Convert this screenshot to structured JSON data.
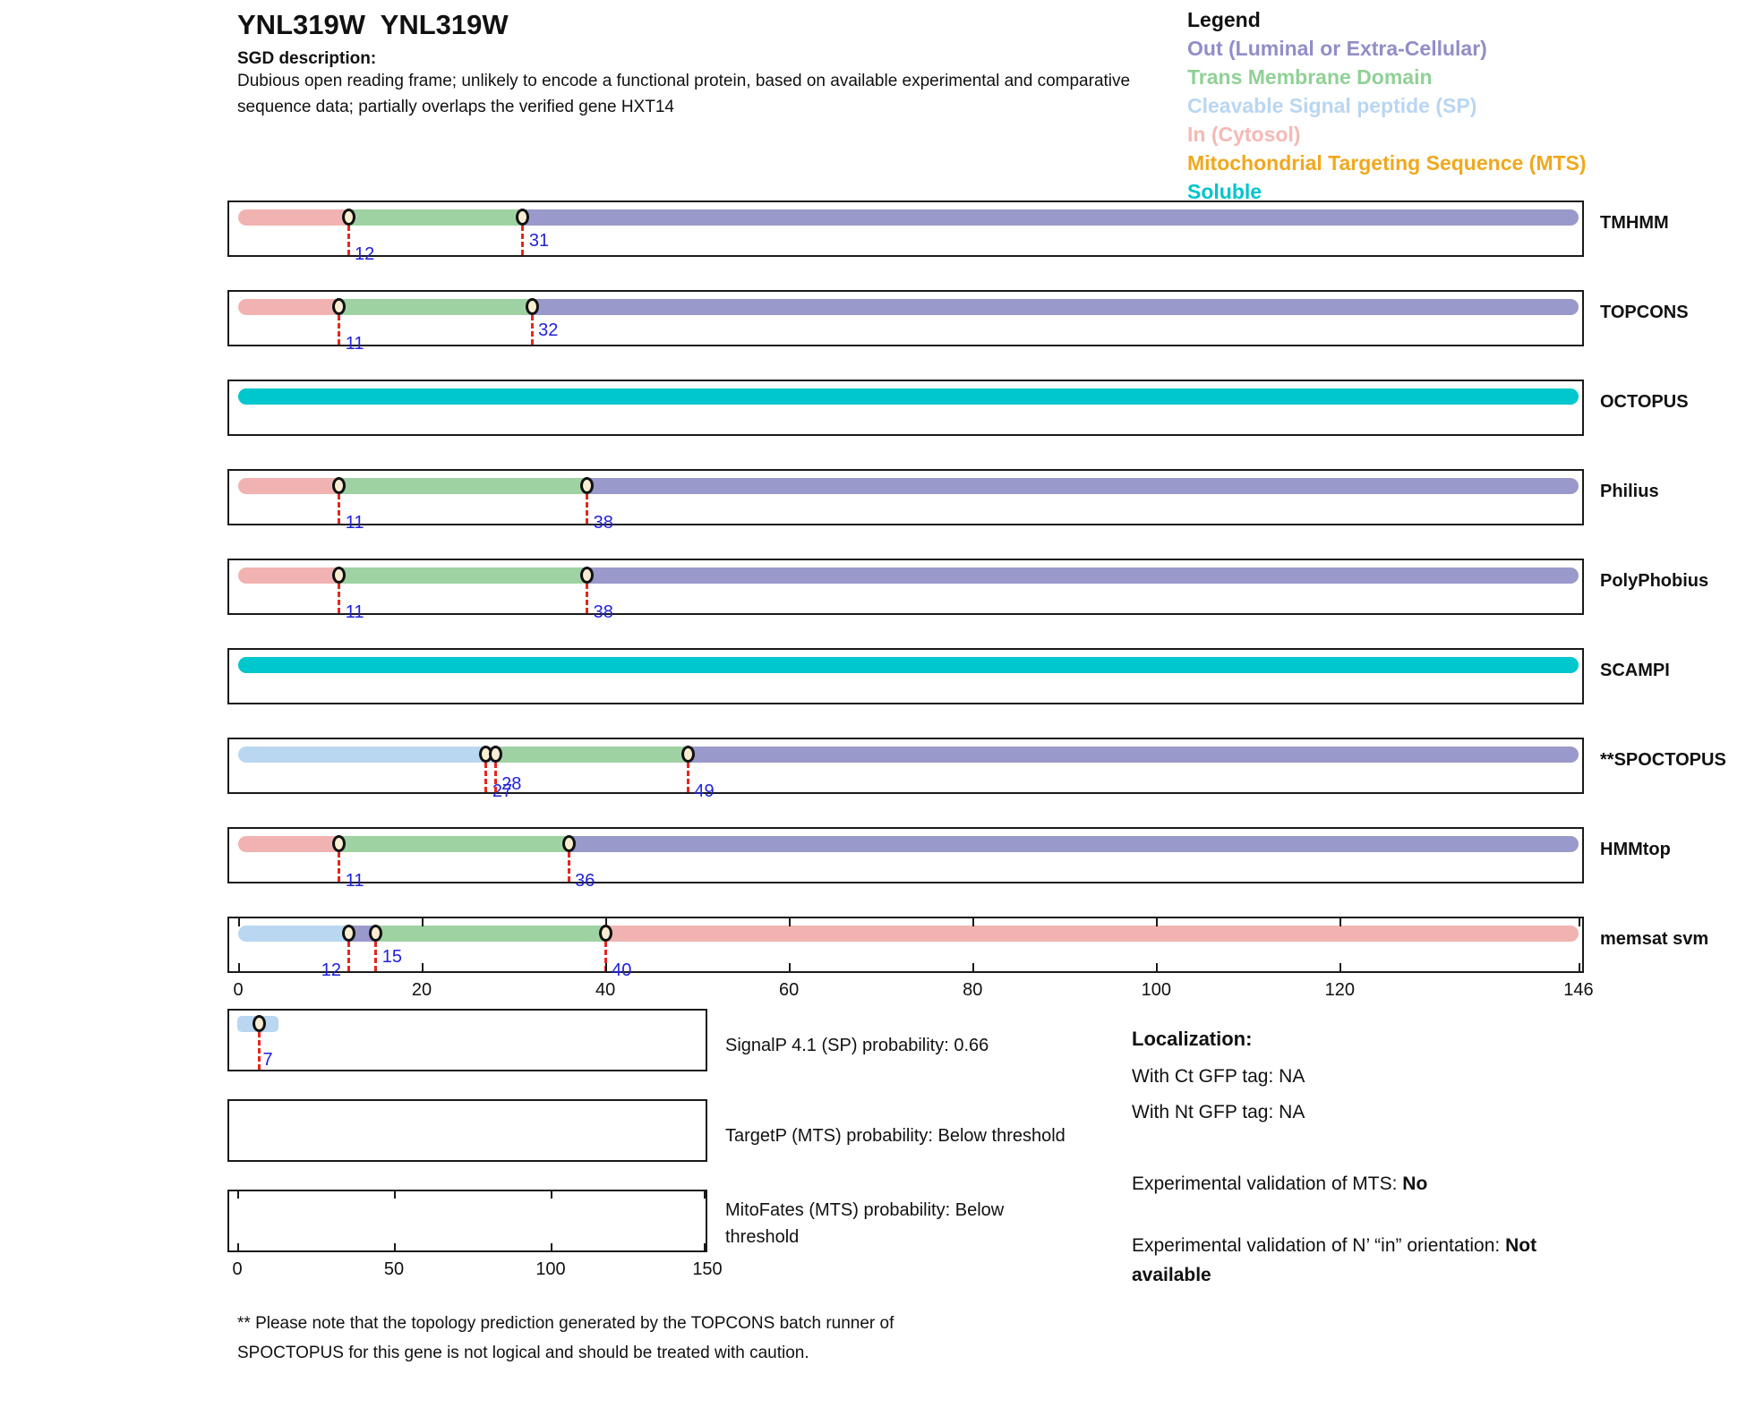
{
  "header": {
    "title": "YNL319W  YNL319W",
    "sgd_label": "SGD description:",
    "description": "Dubious open reading frame; unlikely to encode a functional protein, based on available experimental and comparative sequence data; partially overlaps the verified gene HXT14"
  },
  "legend": {
    "title": "Legend",
    "items": [
      {
        "label": "Out (Luminal or Extra-Cellular)",
        "region": "out",
        "color": "#908ec8"
      },
      {
        "label": "Trans Membrane Domain",
        "region": "tm",
        "color": "#90d195"
      },
      {
        "label": "Cleavable Signal peptide (SP)",
        "region": "sp",
        "color": "#b9d6f2"
      },
      {
        "label": "In (Cytosol)",
        "region": "in",
        "color": "#f5b9b4"
      },
      {
        "label": "Mitochondrial Targeting Sequence (MTS)",
        "region": "mts",
        "color": "#f0a81e"
      },
      {
        "label": "Soluble",
        "region": "soluble",
        "color": "#00c5cb"
      }
    ]
  },
  "colors": {
    "in": "#f1b3b1",
    "tm": "#9ed2a2",
    "out": "#9a99cb",
    "sp": "#bad7f2",
    "soluble": "#00c7cd",
    "mts": "#f0a81e",
    "marker_fill": "#f9eed2",
    "marker_line": "#e8251f",
    "number_blue": "#2222dd"
  },
  "chart_data": {
    "type": "topology-tracks",
    "xlim": [
      0,
      146
    ],
    "axis_ticks": [
      0,
      20,
      40,
      60,
      80,
      100,
      120,
      146
    ],
    "tracks": [
      {
        "name": "TMHMM",
        "segments": [
          {
            "region": "in",
            "start": 0,
            "end": 12
          },
          {
            "region": "tm",
            "start": 12,
            "end": 31
          },
          {
            "region": "out",
            "start": 31,
            "end": 146
          }
        ],
        "markers": [
          {
            "pos": 12,
            "label": "12",
            "level": "low",
            "side": "right"
          },
          {
            "pos": 31,
            "label": "31",
            "level": "high",
            "side": "right"
          }
        ]
      },
      {
        "name": "TOPCONS",
        "segments": [
          {
            "region": "in",
            "start": 0,
            "end": 11
          },
          {
            "region": "tm",
            "start": 11,
            "end": 32
          },
          {
            "region": "out",
            "start": 32,
            "end": 146
          }
        ],
        "markers": [
          {
            "pos": 11,
            "label": "11",
            "level": "low",
            "side": "right"
          },
          {
            "pos": 32,
            "label": "32",
            "level": "high",
            "side": "right"
          }
        ]
      },
      {
        "name": "OCTOPUS",
        "segments": [
          {
            "region": "soluble",
            "start": 0,
            "end": 146
          }
        ],
        "markers": []
      },
      {
        "name": "Philius",
        "segments": [
          {
            "region": "in",
            "start": 0,
            "end": 11
          },
          {
            "region": "tm",
            "start": 11,
            "end": 38
          },
          {
            "region": "out",
            "start": 38,
            "end": 146
          }
        ],
        "markers": [
          {
            "pos": 11,
            "label": "11",
            "level": "low",
            "side": "right"
          },
          {
            "pos": 38,
            "label": "38",
            "level": "low",
            "side": "right"
          }
        ]
      },
      {
        "name": "PolyPhobius",
        "segments": [
          {
            "region": "in",
            "start": 0,
            "end": 11
          },
          {
            "region": "tm",
            "start": 11,
            "end": 38
          },
          {
            "region": "out",
            "start": 38,
            "end": 146
          }
        ],
        "markers": [
          {
            "pos": 11,
            "label": "11",
            "level": "low",
            "side": "right"
          },
          {
            "pos": 38,
            "label": "38",
            "level": "low",
            "side": "right"
          }
        ]
      },
      {
        "name": "SCAMPI",
        "segments": [
          {
            "region": "soluble",
            "start": 0,
            "end": 146
          }
        ],
        "markers": []
      },
      {
        "name": "**SPOCTOPUS",
        "segments": [
          {
            "region": "sp",
            "start": 0,
            "end": 28
          },
          {
            "region": "tm",
            "start": 28,
            "end": 49
          },
          {
            "region": "out",
            "start": 49,
            "end": 146
          }
        ],
        "markers": [
          {
            "pos": 27,
            "label": "27",
            "level": "low",
            "side": "right"
          },
          {
            "pos": 28,
            "label": "28",
            "level": "mid",
            "side": "right"
          },
          {
            "pos": 49,
            "label": "49",
            "level": "low",
            "side": "right"
          }
        ]
      },
      {
        "name": "HMMtop",
        "segments": [
          {
            "region": "in",
            "start": 0,
            "end": 11
          },
          {
            "region": "tm",
            "start": 11,
            "end": 36
          },
          {
            "region": "out",
            "start": 36,
            "end": 146
          }
        ],
        "markers": [
          {
            "pos": 11,
            "label": "11",
            "level": "low",
            "side": "right"
          },
          {
            "pos": 36,
            "label": "36",
            "level": "low",
            "side": "right"
          }
        ]
      },
      {
        "name": "memsat svm",
        "segments": [
          {
            "region": "sp",
            "start": 0,
            "end": 12
          },
          {
            "region": "out",
            "start": 12,
            "end": 15
          },
          {
            "region": "tm",
            "start": 15,
            "end": 40
          },
          {
            "region": "in",
            "start": 40,
            "end": 146
          }
        ],
        "markers": [
          {
            "pos": 12,
            "label": "12",
            "level": "low",
            "side": "left"
          },
          {
            "pos": 15,
            "label": "15",
            "level": "high",
            "side": "right"
          },
          {
            "pos": 40,
            "label": "40",
            "level": "low",
            "side": "right"
          }
        ],
        "has_axis": true
      }
    ],
    "probability_plots": [
      {
        "name": "SignalP",
        "label": "SignalP 4.1 (SP) probability: 0.66",
        "xlim": [
          0,
          150
        ],
        "bar": {
          "region": "sp",
          "start": 0,
          "end": 13
        },
        "marker": {
          "pos": 7,
          "label": "7"
        }
      },
      {
        "name": "TargetP",
        "label": "TargetP (MTS) probability: Below threshold",
        "xlim": [
          0,
          150
        ]
      },
      {
        "name": "MitoFates",
        "label": "MitoFates (MTS) probability: Below threshold",
        "xlim": [
          0,
          150
        ],
        "axis_ticks": [
          0,
          50,
          100,
          150
        ]
      }
    ]
  },
  "localization": {
    "title": "Localization:",
    "ct_line": "With Ct GFP tag: NA",
    "nt_line": "With Nt GFP tag: NA",
    "mts_prefix": "Experimental validation of MTS: ",
    "mts_value": "No",
    "orient_prefix": "Experimental validation of N’ “in” orientation: ",
    "orient_value": "Not available"
  },
  "footnote": "** Please note that the topology prediction generated by the TOPCONS batch runner of SPOCTOPUS for this gene is not logical and should be treated with caution."
}
